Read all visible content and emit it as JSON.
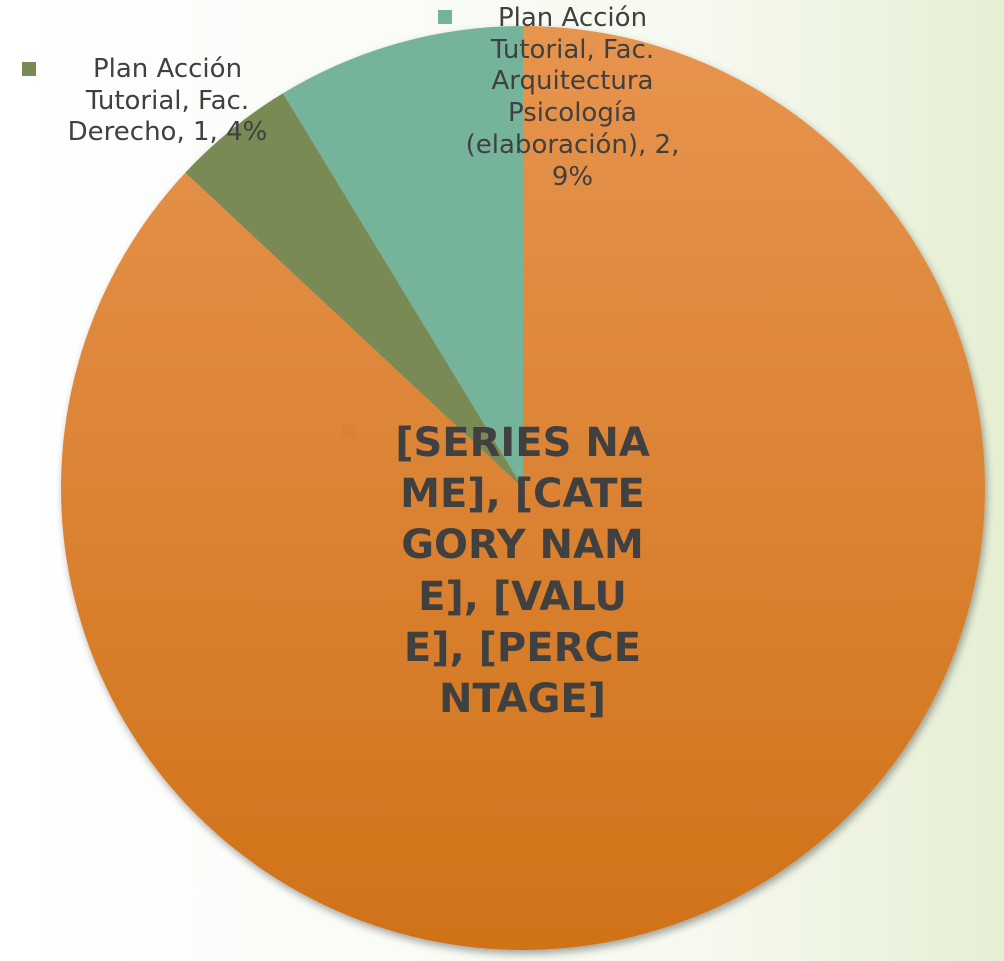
{
  "chart_data": {
    "type": "pie",
    "values": [
      20,
      1,
      2
    ],
    "value_labels": [
      "[SERIES NAME], [CATEGORY NAME], [VALUE], [PERCENTAGE]",
      "Plan Acción Tutorial, Fac. Derecho, 1, 4%",
      "Plan Acción Tutorial, Fac. Arquitectura Psicología (elaboración), 2, 9%"
    ],
    "colors": [
      "#dd8034",
      "#7a8a55",
      "#74b49a"
    ]
  }
}
